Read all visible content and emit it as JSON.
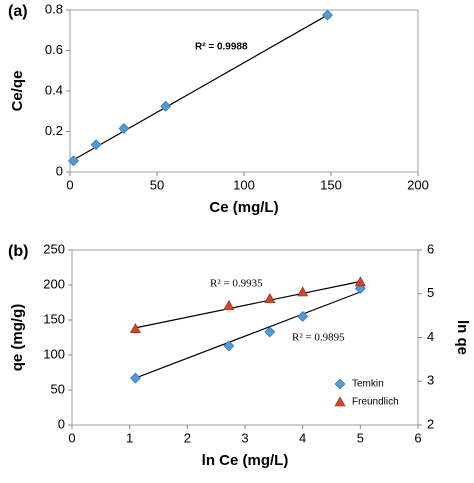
{
  "chart_data": [
    {
      "type": "scatter",
      "panel": "(a)",
      "x_label": "Ce (mg/L)",
      "y_label": "Ce/qe",
      "x": [
        2,
        15,
        31,
        55,
        148
      ],
      "series": [
        {
          "color": "#4f9bd9",
          "marker": "diamond",
          "values": [
            0.055,
            0.135,
            0.215,
            0.325,
            0.775
          ],
          "trendline": {
            "x": [
              0,
              148
            ],
            "y": [
              0.05,
              0.775
            ]
          }
        }
      ],
      "xlim": [
        0,
        200
      ],
      "xticks": [
        0,
        50,
        100,
        150,
        200
      ],
      "ylim": [
        0,
        0.8
      ],
      "yticks": [
        0,
        0.2,
        0.4,
        0.6,
        0.8
      ],
      "annotations": [
        "R² = 0.9988"
      ]
    },
    {
      "type": "scatter",
      "panel": "(b)",
      "x_label": "ln Ce (mg/L)",
      "y_label": "qe (mg/g)",
      "y2_label": "ln qe",
      "x": [
        1.1,
        2.72,
        3.43,
        4.0,
        5.0
      ],
      "series": [
        {
          "name": "Temkin",
          "color": "#4f9bd9",
          "marker": "diamond",
          "values": [
            67,
            113,
            133,
            155,
            195
          ],
          "trendline": {
            "x": [
              1.1,
              5
            ],
            "y": [
              67,
              190
            ]
          }
        },
        {
          "name": "Freundlich",
          "color": "#d4452a",
          "marker": "triangle",
          "axis": "y2",
          "values": [
            4.2,
            4.73,
            4.89,
            5.04,
            5.27
          ],
          "trendline": {
            "x": [
              1.1,
              5
            ],
            "y": [
              4.22,
              5.28
            ]
          }
        }
      ],
      "xlim": [
        0,
        6
      ],
      "xticks": [
        0,
        1,
        2,
        3,
        4,
        5,
        6
      ],
      "ylim": [
        0,
        250
      ],
      "yticks": [
        0,
        50,
        100,
        150,
        200,
        250
      ],
      "y2lim": [
        2,
        6
      ],
      "y2ticks": [
        2,
        3,
        4,
        5,
        6
      ],
      "annotations": [
        "R² = 0.9935",
        "R² = 0.9895"
      ]
    }
  ]
}
